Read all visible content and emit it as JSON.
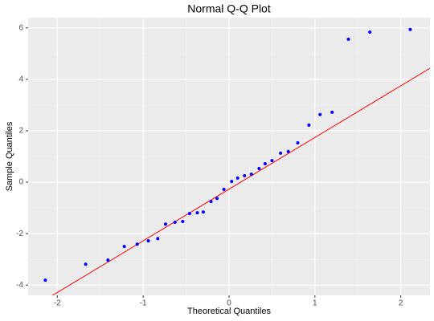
{
  "chart_data": {
    "type": "scatter",
    "title": "Normal Q-Q Plot",
    "x_label": "Theoretical Quantiles",
    "y_label": "Sample Quantiles",
    "x": [
      -2.14,
      -1.67,
      -1.41,
      -1.22,
      -1.07,
      -0.94,
      -0.83,
      -0.74,
      -0.63,
      -0.54,
      -0.46,
      -0.37,
      -0.3,
      -0.21,
      -0.14,
      -0.06,
      0.03,
      0.1,
      0.18,
      0.26,
      0.35,
      0.42,
      0.5,
      0.6,
      0.69,
      0.8,
      0.93,
      1.06,
      1.2,
      1.39,
      1.64,
      2.11
    ],
    "values": [
      -3.81,
      -3.19,
      -3.03,
      -2.5,
      -2.41,
      -2.28,
      -2.19,
      -1.63,
      -1.56,
      -1.53,
      -1.22,
      -1.19,
      -1.16,
      -0.75,
      -0.63,
      -0.28,
      0.03,
      0.16,
      0.25,
      0.31,
      0.53,
      0.72,
      0.84,
      1.13,
      1.19,
      1.53,
      2.22,
      2.63,
      2.72,
      5.56,
      5.84,
      5.94
    ],
    "color": "#0000ff",
    "qq_line": {
      "intercept": -0.27,
      "slope": 2.01,
      "color": "#ff0000"
    },
    "xlim": [
      -2.34,
      2.34
    ],
    "ylim": [
      -4.4,
      6.4
    ],
    "xticks": [
      -2,
      -1,
      0,
      1,
      2
    ],
    "yticks": [
      -4,
      -2,
      0,
      2,
      4,
      6
    ],
    "grid": true
  }
}
